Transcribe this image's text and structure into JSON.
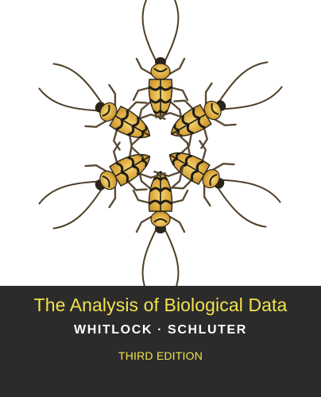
{
  "cover": {
    "title": "The Analysis of Biological Data",
    "authors": "WHITLOCK · SCHLUTER",
    "edition": "THIRD EDITION"
  },
  "artwork": {
    "subject": "beetle-icon",
    "count": 6,
    "colors": {
      "shell": "#d4a33b",
      "shell_light": "#f0d06a",
      "marking": "#1e1c18",
      "legs": "#5a4a34",
      "band": "#2b2b2b",
      "title_text": "#f2e24e",
      "author_text": "#ffffff"
    }
  }
}
